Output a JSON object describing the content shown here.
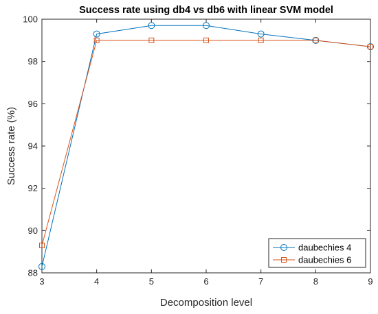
{
  "chart_data": {
    "type": "line",
    "title": "Success rate using db4 vs db6 with linear SVM model",
    "xlabel": "Decomposition level",
    "ylabel": "Success rate (%)",
    "xlim": [
      3,
      9
    ],
    "ylim": [
      88,
      100
    ],
    "xticks": [
      3,
      4,
      5,
      6,
      7,
      8,
      9
    ],
    "yticks": [
      88,
      90,
      92,
      94,
      96,
      98,
      100
    ],
    "grid": false,
    "legend_position": "bottom-right",
    "x": [
      3,
      4,
      5,
      6,
      7,
      8,
      9
    ],
    "series": [
      {
        "name": "daubechies 4",
        "color": "#0072BD",
        "marker": "circle",
        "values": [
          88.3,
          99.3,
          99.7,
          99.7,
          99.3,
          99.0,
          98.7
        ]
      },
      {
        "name": "daubechies 6",
        "color": "#D95319",
        "marker": "square",
        "values": [
          89.3,
          99.0,
          99.0,
          99.0,
          99.0,
          99.0,
          98.7
        ]
      }
    ]
  }
}
